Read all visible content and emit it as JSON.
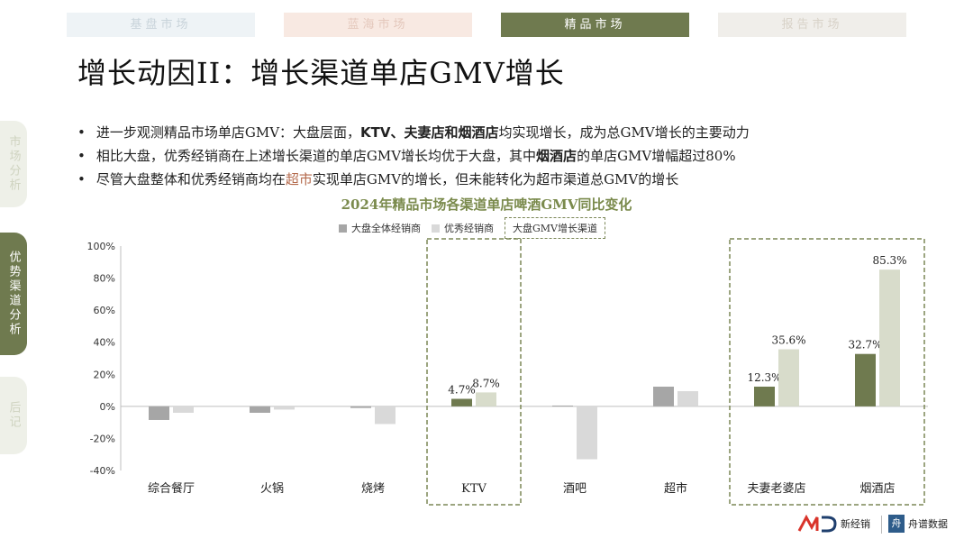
{
  "tabs": [
    "基盘市场",
    "蓝海市场",
    "精品市场",
    "报告市场"
  ],
  "side_nav": [
    "市场分析",
    "优势渠道分析",
    "后记"
  ],
  "title": "增长动因II：增长渠道单店GMV增长",
  "bullets": [
    [
      {
        "t": "进一步观测精品市场单店GMV：大盘层面，"
      },
      {
        "t": "KTV、夫妻店和烟酒店",
        "b": true
      },
      {
        "t": "均实现增长，成为总GMV增长的主要动力"
      }
    ],
    [
      {
        "t": "相比大盘，优秀经销商在上述增长渠道的单店GMV增长均优于大盘，其中"
      },
      {
        "t": "烟酒店",
        "b": true
      },
      {
        "t": "的单店GMV增幅超过80%"
      }
    ],
    [
      {
        "t": "尽管大盘整体和优秀经销商均在"
      },
      {
        "t": "超市",
        "hl": true
      },
      {
        "t": "实现单店GMV的增长，但未能转化为超市渠道总GMV的增长"
      }
    ]
  ],
  "brand": {
    "logo1_text": "新经销",
    "logo2_text": "舟谱数据"
  },
  "chart_data": {
    "type": "bar",
    "title": "2024年精品市场各渠道单店啤酒GMV同比变化",
    "categories": [
      "综合餐厅",
      "火锅",
      "烧烤",
      "KTV",
      "酒吧",
      "超市",
      "夫妻老婆店",
      "烟酒店"
    ],
    "series": [
      {
        "name": "大盘全体经销商",
        "values": [
          -8.5,
          -4.0,
          -1.0,
          4.7,
          0.5,
          12.3,
          12.3,
          32.7
        ]
      },
      {
        "name": "优秀经销商",
        "values": [
          -4.0,
          -2.0,
          -11.0,
          8.7,
          -33.0,
          9.5,
          35.6,
          85.3
        ]
      }
    ],
    "highlight_categories": [
      "KTV",
      "夫妻老婆店",
      "烟酒店"
    ],
    "highlight_legend": "大盘GMV增长渠道",
    "data_labels": {
      "KTV": [
        "4.7%",
        "8.7%"
      ],
      "夫妻老婆店": [
        "12.3%",
        "35.6%"
      ],
      "烟酒店": [
        "32.7%",
        "85.3%"
      ]
    },
    "y_ticks": [
      "-40%",
      "-20%",
      "0%",
      "20%",
      "40%",
      "60%",
      "80%",
      "100%"
    ],
    "ylim": [
      -40,
      100
    ],
    "grid": false,
    "legend_position": "top",
    "colors": {
      "base_normal": "#a6a6a6",
      "top_normal": "#d9d9d9",
      "base_highlight": "#6f7a4f",
      "top_highlight": "#d8dccb",
      "highlight_border": "#7b8757"
    }
  }
}
